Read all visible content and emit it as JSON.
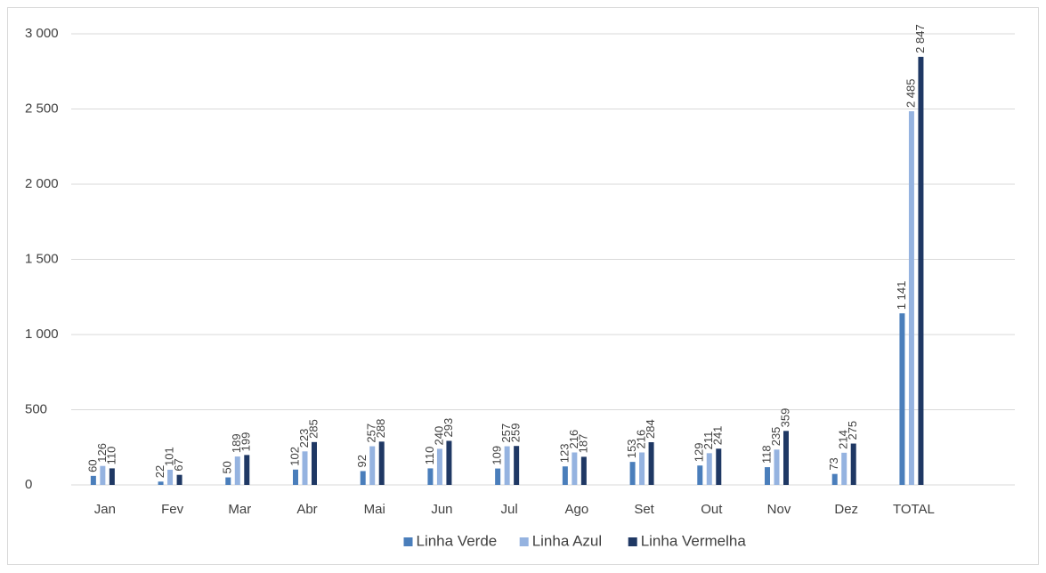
{
  "chart_data": {
    "type": "bar",
    "categories": [
      "Jan",
      "Fev",
      "Mar",
      "Abr",
      "Mai",
      "Jun",
      "Jul",
      "Ago",
      "Set",
      "Out",
      "Nov",
      "Dez",
      "TOTAL",
      null
    ],
    "series": [
      {
        "name": "Linha Verde",
        "color": "#4a7ebb",
        "values": [
          60,
          22,
          50,
          102,
          92,
          110,
          109,
          123,
          153,
          129,
          118,
          73,
          1141,
          null
        ],
        "value_labels": [
          "60",
          "22",
          "50",
          "102",
          "92",
          "110",
          "109",
          "123",
          "153",
          "129",
          "118",
          "73",
          "1 141",
          null
        ]
      },
      {
        "name": "Linha Azul",
        "color": "#95b3e0",
        "values": [
          126,
          101,
          189,
          223,
          257,
          240,
          257,
          216,
          216,
          211,
          235,
          214,
          2485,
          null
        ],
        "value_labels": [
          "126",
          "101",
          "189",
          "223",
          "257",
          "240",
          "257",
          "216",
          "216",
          "211",
          "235",
          "214",
          "2 485",
          null
        ]
      },
      {
        "name": "Linha Vermelha",
        "color": "#1f3864",
        "values": [
          110,
          67,
          199,
          285,
          288,
          293,
          259,
          187,
          284,
          241,
          359,
          275,
          2847,
          null
        ],
        "value_labels": [
          "110",
          "67",
          "199",
          "285",
          "288",
          "293",
          "259",
          "187",
          "284",
          "241",
          "359",
          "275",
          "2 847",
          null
        ]
      }
    ],
    "ylim": [
      0,
      3000
    ],
    "yticks": [
      0,
      500,
      {
        "value": 1000,
        "label": "1 000"
      },
      {
        "value": 1500,
        "label": "1 500"
      },
      {
        "value": 2000,
        "label": "2 000"
      },
      {
        "value": 2500,
        "label": "2 500"
      },
      {
        "value": 3000,
        "label": "3 000"
      }
    ],
    "grid": true,
    "legend": "bottom"
  }
}
